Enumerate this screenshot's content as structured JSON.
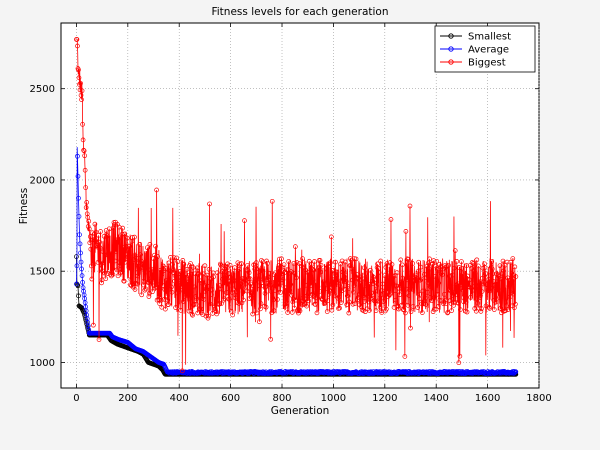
{
  "chart_data": {
    "type": "line",
    "title": "Fitness levels for each generation",
    "xlabel": "Generation",
    "ylabel": "Fitness",
    "xlim": [
      -60,
      1800
    ],
    "ylim": [
      860,
      2860
    ],
    "xticks": [
      0,
      200,
      400,
      600,
      800,
      1000,
      1200,
      1400,
      1600,
      1800
    ],
    "yticks": [
      1000,
      1500,
      2000,
      2500
    ],
    "grid": true,
    "legend_position": "top-right",
    "n_generations": 1710,
    "series": [
      {
        "name": "Smallest",
        "color": "#000000",
        "marker": "circle",
        "keypoints": [
          [
            0,
            1580
          ],
          [
            2,
            1430
          ],
          [
            6,
            1420
          ],
          [
            10,
            1310
          ],
          [
            20,
            1300
          ],
          [
            30,
            1270
          ],
          [
            40,
            1210
          ],
          [
            50,
            1150
          ],
          [
            120,
            1150
          ],
          [
            135,
            1120
          ],
          [
            160,
            1100
          ],
          [
            200,
            1080
          ],
          [
            220,
            1070
          ],
          [
            240,
            1060
          ],
          [
            260,
            1045
          ],
          [
            280,
            1000
          ],
          [
            300,
            990
          ],
          [
            320,
            980
          ],
          [
            335,
            960
          ],
          [
            345,
            935
          ],
          [
            1710,
            935
          ]
        ]
      },
      {
        "name": "Average",
        "color": "#0000ff",
        "marker": "circle",
        "keypoints": [
          [
            0,
            1430
          ],
          [
            2,
            1530
          ],
          [
            3,
            2180
          ],
          [
            5,
            2080
          ],
          [
            8,
            1900
          ],
          [
            12,
            1700
          ],
          [
            18,
            1550
          ],
          [
            25,
            1420
          ],
          [
            32,
            1350
          ],
          [
            40,
            1260
          ],
          [
            50,
            1160
          ],
          [
            130,
            1160
          ],
          [
            140,
            1140
          ],
          [
            165,
            1125
          ],
          [
            200,
            1110
          ],
          [
            230,
            1075
          ],
          [
            260,
            1060
          ],
          [
            280,
            1040
          ],
          [
            300,
            1020
          ],
          [
            320,
            1000
          ],
          [
            340,
            990
          ],
          [
            355,
            945
          ],
          [
            1710,
            945
          ]
        ]
      },
      {
        "name": "Biggest",
        "color": "#ff0000",
        "marker": "circle",
        "keypoints": [
          [
            0,
            2770
          ],
          [
            3,
            2770
          ],
          [
            8,
            2590
          ],
          [
            12,
            2560
          ],
          [
            18,
            2480
          ],
          [
            22,
            2520
          ],
          [
            26,
            2200
          ],
          [
            30,
            2150
          ],
          [
            36,
            1960
          ],
          [
            42,
            1800
          ],
          [
            50,
            1700
          ],
          [
            60,
            1600
          ],
          [
            80,
            1620
          ],
          [
            100,
            1580
          ],
          [
            120,
            1620
          ],
          [
            160,
            1620
          ],
          [
            200,
            1580
          ],
          [
            240,
            1520
          ],
          [
            300,
            1500
          ],
          [
            340,
            1440
          ],
          [
            400,
            1420
          ],
          [
            500,
            1390
          ],
          [
            600,
            1400
          ],
          [
            800,
            1420
          ],
          [
            1000,
            1420
          ],
          [
            1200,
            1420
          ],
          [
            1400,
            1420
          ],
          [
            1600,
            1420
          ],
          [
            1710,
            1420
          ]
        ],
        "noise": 150
      }
    ]
  }
}
